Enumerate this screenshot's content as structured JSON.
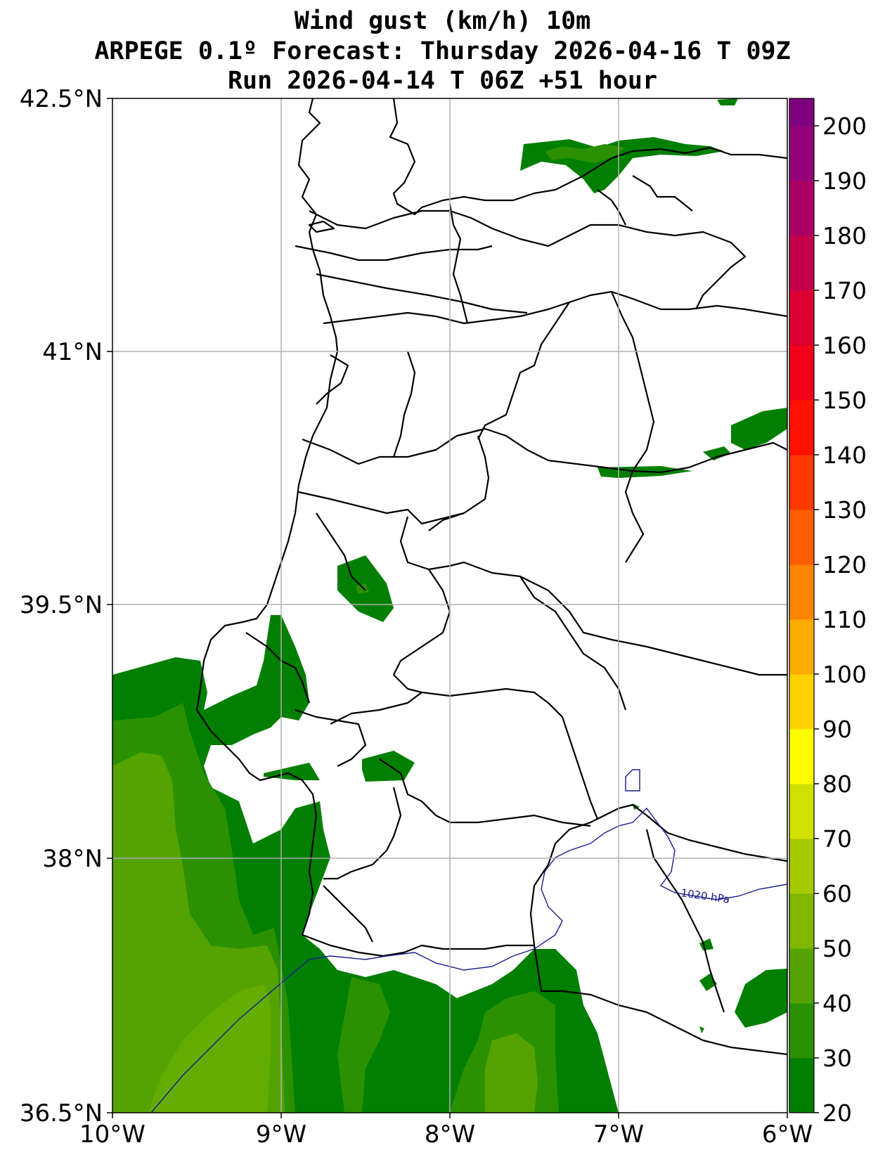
{
  "title": {
    "line1": "Wind gust (km/h) 10m",
    "line2": "ARPEGE 0.1º Forecast: Thursday 2026-04-16 T 09Z",
    "line3": "Run 2026-04-14 T 06Z +51 hour"
  },
  "map": {
    "lon_range": [
      -10,
      -6
    ],
    "lat_range": [
      36.5,
      42.5
    ],
    "grid": true,
    "x_ticks": [
      "10°W",
      "9°W",
      "8°W",
      "7°W",
      "6°W"
    ],
    "y_ticks": [
      "42.5°N",
      "41°N",
      "39.5°N",
      "38°N",
      "36.5°N"
    ],
    "isobar_label": "1020 hPa"
  },
  "colorbar": {
    "min": 20,
    "max": 205,
    "step": 5,
    "tick_labels": [
      "20",
      "30",
      "40",
      "50",
      "60",
      "70",
      "80",
      "90",
      "100",
      "110",
      "120",
      "130",
      "140",
      "150",
      "160",
      "170",
      "180",
      "190",
      "200"
    ],
    "colors": {
      "20": "#007f00",
      "30": "#2b9100",
      "40": "#55a300",
      "50": "#80b600",
      "60": "#a6ca00",
      "70": "#d0e000",
      "80": "#fdfd00",
      "90": "#ffd200",
      "100": "#ffac00",
      "110": "#ff8500",
      "120": "#ff5e00",
      "130": "#ff3800",
      "140": "#ff1100",
      "150": "#f2001a",
      "160": "#dc0032",
      "170": "#c4004b",
      "180": "#ab0063",
      "190": "#93007a",
      "200": "#7e007f"
    }
  }
}
